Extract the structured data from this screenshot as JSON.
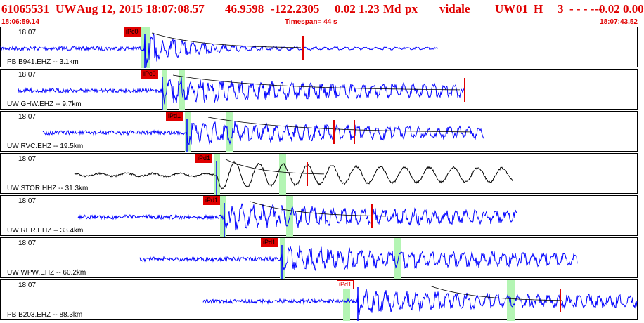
{
  "header": {
    "event_id": "61065531",
    "network": "UW",
    "datetime": "Aug 12, 2015 18:07:08.57",
    "lat": "46.9598",
    "lon": "-122.2305",
    "values_a": "0.02 1.23",
    "mag_type": "Md",
    "px": "px",
    "author": "vidale",
    "net2": "UW",
    "num": "01",
    "flag": "H",
    "count": "3",
    "dashes": "-  -  - ---",
    "values_b": "0.02 0.00"
  },
  "subheader": {
    "start_time": "18:06:59.14",
    "timespan": "Timespan=  44 s",
    "end_time": "18:07:43.52"
  },
  "colors": {
    "header_red": "#e00000",
    "wave_blue": "#0000ff",
    "wave_black": "#000000",
    "window_green": "#b4f5b4",
    "pick_red": "#e00000"
  },
  "panels": [
    {
      "time": "18:07",
      "label": "PB B941.EHZ -- 3.1km",
      "pick_label": "iPc0",
      "pick_style": "filled",
      "wave_color": "blue",
      "channel": "EHZ"
    },
    {
      "time": "18:07",
      "label": "UW GHW.EHZ -- 9.7km",
      "pick_label": "iPc0",
      "pick_style": "filled",
      "wave_color": "blue",
      "channel": "EHZ"
    },
    {
      "time": "18:07",
      "label": "UW RVC.EHZ -- 19.5km",
      "pick_label": "iPd1",
      "pick_style": "filled",
      "wave_color": "blue",
      "channel": "EHZ"
    },
    {
      "time": "18:07",
      "label": "UW STOR.HHZ -- 31.3km",
      "pick_label": "iPd1",
      "pick_style": "filled",
      "wave_color": "black",
      "channel": "HHZ"
    },
    {
      "time": "18:07",
      "label": "UW RER.EHZ -- 33.4km",
      "pick_label": "iPd1",
      "pick_style": "filled",
      "wave_color": "blue",
      "channel": "EHZ"
    },
    {
      "time": "18:07",
      "label": "UW WPW.EHZ -- 60.2km",
      "pick_label": "iPd1",
      "pick_style": "filled",
      "wave_color": "blue",
      "channel": "EHZ"
    },
    {
      "time": "18:07",
      "label": "PB B203.EHZ -- 88.3km",
      "pick_label": "iPd1",
      "pick_style": "outline",
      "wave_color": "blue",
      "channel": "EHZ"
    }
  ]
}
